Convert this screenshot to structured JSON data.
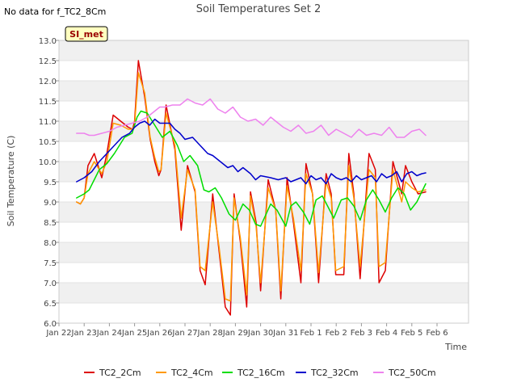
{
  "page": {
    "nodata_note": "No data for f_TC2_8Cm",
    "site_badge": "SI_met"
  },
  "chart_data": {
    "type": "line",
    "title": "Soil Temperatures Set 2",
    "xlabel": "Time",
    "ylabel": "Soil Temperature (C)",
    "xlim": [
      0,
      15.6
    ],
    "ylim": [
      6.0,
      13.0
    ],
    "x_ticks": [
      {
        "value": 0,
        "label": "Jan 22"
      },
      {
        "value": 1,
        "label": "Jan 23"
      },
      {
        "value": 2,
        "label": "Jan 24"
      },
      {
        "value": 3,
        "label": "Jan 25"
      },
      {
        "value": 4,
        "label": "Jan 26"
      },
      {
        "value": 5,
        "label": "Jan 27"
      },
      {
        "value": 6,
        "label": "Jan 28"
      },
      {
        "value": 7,
        "label": "Jan 29"
      },
      {
        "value": 8,
        "label": "Jan 30"
      },
      {
        "value": 9,
        "label": "Jan 31"
      },
      {
        "value": 10,
        "label": "Feb 1"
      },
      {
        "value": 11,
        "label": "Feb 2"
      },
      {
        "value": 12,
        "label": "Feb 3"
      },
      {
        "value": 13,
        "label": "Feb 4"
      },
      {
        "value": 14,
        "label": "Feb 5"
      },
      {
        "value": 15,
        "label": "Feb 6"
      }
    ],
    "y_ticks": [
      "6.0",
      "6.5",
      "7.0",
      "7.5",
      "8.0",
      "8.5",
      "9.0",
      "9.5",
      "10.0",
      "10.5",
      "11.0",
      "11.5",
      "12.0",
      "12.5",
      "13.0"
    ],
    "grid": true,
    "background_bands": true,
    "legend_position": "bottom",
    "series": [
      {
        "name": "TC2_2Cm",
        "color": "#dd0000",
        "x": [
          0.7,
          0.85,
          1.0,
          1.15,
          1.4,
          1.7,
          1.9,
          2.15,
          2.45,
          2.75,
          2.92,
          3.0,
          3.15,
          3.4,
          3.62,
          3.8,
          3.96,
          4.05,
          4.25,
          4.6,
          4.85,
          5.1,
          5.4,
          5.6,
          5.8,
          6.1,
          6.35,
          6.6,
          6.8,
          6.95,
          7.2,
          7.45,
          7.6,
          7.82,
          8.0,
          8.3,
          8.6,
          8.8,
          9.05,
          9.3,
          9.6,
          9.8,
          10.06,
          10.3,
          10.6,
          10.8,
          10.98,
          11.3,
          11.5,
          11.7,
          11.95,
          12.3,
          12.55,
          12.7,
          12.95,
          13.25,
          13.6,
          13.75,
          14.0,
          14.25,
          14.55
        ],
        "values": [
          9.0,
          8.95,
          9.1,
          9.9,
          10.2,
          9.6,
          10.2,
          11.15,
          11.0,
          10.85,
          10.8,
          11.0,
          12.5,
          11.6,
          10.55,
          10.0,
          9.65,
          9.8,
          11.4,
          10.3,
          8.3,
          9.9,
          9.25,
          7.3,
          6.95,
          9.2,
          7.8,
          6.4,
          6.2,
          9.2,
          8.0,
          6.4,
          9.25,
          8.5,
          6.8,
          9.55,
          8.8,
          6.6,
          9.6,
          8.5,
          7.0,
          9.95,
          9.2,
          7.0,
          9.7,
          9.2,
          7.2,
          7.2,
          10.2,
          9.2,
          7.1,
          10.2,
          9.8,
          7.0,
          7.3,
          10.0,
          9.2,
          9.9,
          9.5,
          9.2,
          9.25
        ]
      },
      {
        "name": "TC2_4Cm",
        "color": "#ff9900",
        "x": [
          0.7,
          0.85,
          1.0,
          1.15,
          1.4,
          1.7,
          1.9,
          2.15,
          2.45,
          2.75,
          2.92,
          3.0,
          3.15,
          3.4,
          3.62,
          3.8,
          3.96,
          4.05,
          4.25,
          4.6,
          4.85,
          5.1,
          5.4,
          5.6,
          5.8,
          6.1,
          6.35,
          6.6,
          6.8,
          6.95,
          7.2,
          7.45,
          7.6,
          7.82,
          8.0,
          8.3,
          8.6,
          8.8,
          9.05,
          9.3,
          9.6,
          9.8,
          10.06,
          10.3,
          10.6,
          10.8,
          10.98,
          11.3,
          11.5,
          11.7,
          11.95,
          12.3,
          12.55,
          12.7,
          12.95,
          13.25,
          13.6,
          13.75,
          14.0,
          14.25,
          14.55
        ],
        "values": [
          9.0,
          8.95,
          9.1,
          9.7,
          10.0,
          9.7,
          10.0,
          10.95,
          10.9,
          10.8,
          10.8,
          10.9,
          12.2,
          11.7,
          10.6,
          10.1,
          9.75,
          9.8,
          11.2,
          10.4,
          8.6,
          9.8,
          9.3,
          7.4,
          7.3,
          9.0,
          7.9,
          6.6,
          6.55,
          9.1,
          8.1,
          6.7,
          9.15,
          8.4,
          7.0,
          9.35,
          8.8,
          6.8,
          9.4,
          8.6,
          7.3,
          9.7,
          9.2,
          7.25,
          9.5,
          9.1,
          7.3,
          7.4,
          9.9,
          9.1,
          7.4,
          9.8,
          9.6,
          7.4,
          7.5,
          9.8,
          9.0,
          9.5,
          9.35,
          9.25,
          9.3
        ]
      },
      {
        "name": "TC2_16Cm",
        "color": "#00dd00",
        "x": [
          0.7,
          1.0,
          1.2,
          1.6,
          1.9,
          2.2,
          2.6,
          2.9,
          3.1,
          3.25,
          3.5,
          3.8,
          4.1,
          4.4,
          4.7,
          4.95,
          5.2,
          5.5,
          5.75,
          5.95,
          6.2,
          6.45,
          6.75,
          7.0,
          7.3,
          7.55,
          7.8,
          8.0,
          8.4,
          8.65,
          9.0,
          9.2,
          9.4,
          9.7,
          9.95,
          10.2,
          10.45,
          10.7,
          10.9,
          11.2,
          11.45,
          11.7,
          11.95,
          12.2,
          12.45,
          12.7,
          12.95,
          13.2,
          13.45,
          13.7,
          13.95,
          14.2,
          14.55
        ],
        "values": [
          9.1,
          9.2,
          9.3,
          9.8,
          9.95,
          10.2,
          10.6,
          10.7,
          11.1,
          11.25,
          11.2,
          10.9,
          10.6,
          10.75,
          10.4,
          10.0,
          10.15,
          9.9,
          9.3,
          9.25,
          9.35,
          9.1,
          8.7,
          8.55,
          8.95,
          8.8,
          8.45,
          8.4,
          8.95,
          8.8,
          8.4,
          8.9,
          9.0,
          8.75,
          8.45,
          9.05,
          9.15,
          8.85,
          8.6,
          9.05,
          9.1,
          8.9,
          8.55,
          9.05,
          9.3,
          9.05,
          8.75,
          9.1,
          9.35,
          9.2,
          8.8,
          9.0,
          9.45
        ]
      },
      {
        "name": "TC2_32Cm",
        "color": "#0000cc",
        "x": [
          0.7,
          1.0,
          1.3,
          1.6,
          1.9,
          2.2,
          2.5,
          2.8,
          3.0,
          3.2,
          3.4,
          3.6,
          3.8,
          4.0,
          4.2,
          4.4,
          4.6,
          4.8,
          5.0,
          5.3,
          5.6,
          5.9,
          6.1,
          6.4,
          6.7,
          6.9,
          7.1,
          7.3,
          7.6,
          7.8,
          8.0,
          8.4,
          8.7,
          9.0,
          9.2,
          9.4,
          9.6,
          9.8,
          10.0,
          10.2,
          10.4,
          10.6,
          10.8,
          11.0,
          11.2,
          11.4,
          11.6,
          11.8,
          12.0,
          12.2,
          12.4,
          12.6,
          12.8,
          13.0,
          13.2,
          13.4,
          13.6,
          13.8,
          14.0,
          14.2,
          14.4,
          14.55
        ],
        "values": [
          9.5,
          9.6,
          9.75,
          10.0,
          10.2,
          10.4,
          10.6,
          10.7,
          10.85,
          10.95,
          11.0,
          10.9,
          11.05,
          10.95,
          10.95,
          10.95,
          10.8,
          10.7,
          10.55,
          10.6,
          10.4,
          10.2,
          10.15,
          10.0,
          9.85,
          9.9,
          9.75,
          9.85,
          9.7,
          9.55,
          9.65,
          9.6,
          9.55,
          9.6,
          9.5,
          9.55,
          9.6,
          9.45,
          9.65,
          9.55,
          9.6,
          9.45,
          9.7,
          9.6,
          9.55,
          9.6,
          9.5,
          9.65,
          9.55,
          9.6,
          9.65,
          9.5,
          9.7,
          9.6,
          9.65,
          9.75,
          9.5,
          9.7,
          9.75,
          9.65,
          9.7,
          9.72
        ]
      },
      {
        "name": "TC2_50Cm",
        "color": "#ee82ee",
        "x": [
          0.7,
          1.0,
          1.2,
          1.4,
          1.7,
          2.0,
          2.3,
          2.6,
          2.9,
          3.2,
          3.5,
          3.8,
          4.0,
          4.2,
          4.5,
          4.8,
          5.1,
          5.4,
          5.7,
          6.0,
          6.3,
          6.6,
          6.9,
          7.2,
          7.5,
          7.8,
          8.1,
          8.4,
          8.6,
          8.9,
          9.2,
          9.5,
          9.8,
          10.1,
          10.4,
          10.7,
          11.0,
          11.3,
          11.6,
          11.9,
          12.2,
          12.5,
          12.8,
          13.1,
          13.4,
          13.7,
          14.0,
          14.3,
          14.55
        ],
        "values": [
          10.7,
          10.7,
          10.65,
          10.65,
          10.7,
          10.75,
          10.85,
          10.9,
          10.95,
          11.0,
          11.1,
          11.25,
          11.35,
          11.35,
          11.4,
          11.4,
          11.55,
          11.45,
          11.4,
          11.55,
          11.3,
          11.2,
          11.35,
          11.1,
          11.0,
          11.05,
          10.9,
          11.1,
          11.0,
          10.85,
          10.75,
          10.9,
          10.7,
          10.75,
          10.9,
          10.65,
          10.8,
          10.7,
          10.6,
          10.8,
          10.65,
          10.7,
          10.65,
          10.85,
          10.6,
          10.6,
          10.75,
          10.8,
          10.65
        ]
      }
    ]
  }
}
